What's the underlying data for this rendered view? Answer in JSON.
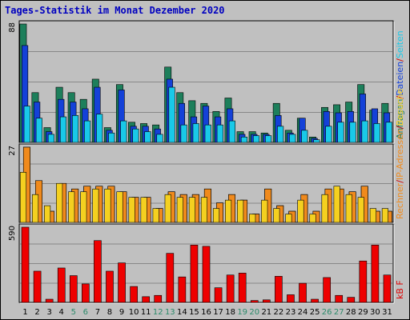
{
  "page": {
    "title": "Tages-Statistik im Monat Dezember 2020"
  },
  "legend": {
    "top": [
      {
        "text": "Anfragen",
        "color": "#1d7f5b"
      },
      {
        "text": "/",
        "color": "#cc0000"
      },
      {
        "text": "Dateien",
        "color": "#1441d8"
      },
      {
        "text": "/",
        "color": "#cc0000"
      },
      {
        "text": "Seiten",
        "color": "#19c9e8"
      }
    ],
    "mid": [
      {
        "text": "Rechner",
        "color": "#f08a1c"
      },
      {
        "text": "/",
        "color": "#cc0000"
      },
      {
        "text": "IP-Adressen",
        "color": "#f08a1c"
      },
      {
        "text": "/",
        "color": "#cc0000"
      },
      {
        "text": "Besuche",
        "color": "#f4d020"
      }
    ],
    "bot": [
      {
        "text": "kB F",
        "color": "#dd0000"
      }
    ]
  },
  "chart_data": {
    "type": "bar",
    "title": "Tages-Statistik im Monat Dezember 2020",
    "categories": [
      "1",
      "2",
      "3",
      "4",
      "5",
      "6",
      "7",
      "8",
      "9",
      "10",
      "11",
      "12",
      "13",
      "14",
      "15",
      "16",
      "17",
      "18",
      "19",
      "20",
      "21",
      "22",
      "23",
      "24",
      "25",
      "26",
      "27",
      "28",
      "29",
      "30",
      "31"
    ],
    "weekend_days": [
      "5",
      "6",
      "12",
      "13",
      "19",
      "20",
      "26",
      "27"
    ],
    "colors": {
      "weekday": "#000000",
      "weekend": "#2b8a6a"
    },
    "panels": [
      {
        "name": "requests",
        "ymax_label": "88",
        "ylim": [
          0,
          88
        ],
        "grid": true,
        "series": [
          {
            "name": "Anfragen",
            "color": "#1d7f5b",
            "values": [
              88,
              37,
              11,
              41,
              37,
              32,
              47,
              11,
              43,
              15,
              14,
              13,
              56,
              37,
              31,
              29,
              23,
              33,
              8,
              8,
              7,
              29,
              9,
              18,
              4,
              26,
              28,
              30,
              43,
              24,
              29
            ]
          },
          {
            "name": "Dateien",
            "color": "#1441d8",
            "values": [
              72,
              30,
              8,
              32,
              30,
              25,
              41,
              9,
              39,
              12,
              12,
              10,
              47,
              29,
              19,
              27,
              19,
              25,
              6,
              6,
              6,
              20,
              7,
              18,
              3,
              23,
              22,
              23,
              36,
              25,
              22
            ]
          },
          {
            "name": "Seiten",
            "color": "#19c9e8",
            "values": [
              27,
              18,
              6,
              19,
              20,
              16,
              21,
              7,
              16,
              10,
              8,
              6,
              41,
              13,
              14,
              13,
              13,
              16,
              4,
              5,
              5,
              12,
              6,
              9,
              2,
              12,
              15,
              15,
              16,
              14,
              15
            ]
          }
        ]
      },
      {
        "name": "visits",
        "ymax_label": "27",
        "ylim": [
          0,
          27
        ],
        "grid": true,
        "series": [
          {
            "name": "Rechner",
            "color": "#f08a1c",
            "values": [
              27,
              15,
              4,
              14,
              12,
              13,
              13,
              13,
              11,
              9,
              9,
              5,
              11,
              10,
              10,
              12,
              7,
              10,
              8,
              3,
              12,
              6,
              4,
              10,
              4,
              12,
              12,
              11,
              13,
              4,
              4
            ]
          },
          {
            "name": "IP-Adressen",
            "color": "#f08a1c",
            "values": [
              27,
              15,
              4,
              14,
              12,
              13,
              13,
              13,
              11,
              9,
              9,
              5,
              11,
              10,
              10,
              12,
              7,
              10,
              8,
              3,
              12,
              6,
              4,
              10,
              4,
              12,
              12,
              11,
              13,
              4,
              4
            ]
          },
          {
            "name": "Besuche",
            "color": "#f4d020",
            "values": [
              18,
              10,
              6,
              14,
              11,
              11,
              12,
              12,
              11,
              9,
              9,
              5,
              10,
              9,
              9,
              9,
              5,
              8,
              8,
              3,
              8,
              5,
              3,
              8,
              3,
              10,
              13,
              10,
              9,
              5,
              5
            ]
          }
        ]
      },
      {
        "name": "kbytes",
        "ymax_label": "590",
        "ylim": [
          0,
          590
        ],
        "grid": true,
        "series": [
          {
            "name": "kB F",
            "color": "#ee0000",
            "values": [
              590,
              245,
              25,
              270,
              210,
              145,
              485,
              245,
              310,
              125,
              45,
              55,
              385,
              200,
              450,
              440,
              115,
              215,
              230,
              15,
              20,
              205,
              60,
              150,
              25,
              195,
              55,
              40,
              325,
              450,
              215
            ]
          }
        ]
      }
    ]
  }
}
